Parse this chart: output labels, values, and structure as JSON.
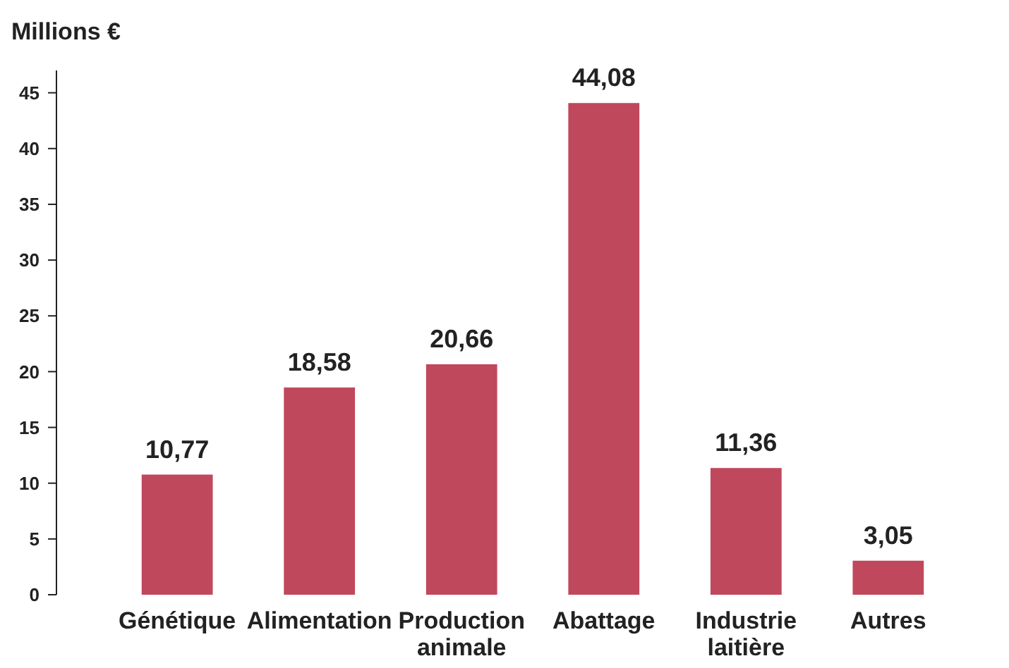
{
  "chart_data": {
    "type": "bar",
    "ylabel": "Millions €",
    "categories": [
      "Génétique",
      "Alimentation",
      "Production animale",
      "Abattage",
      "Industrie laitière",
      "Autres"
    ],
    "values": [
      10.77,
      18.58,
      20.66,
      44.08,
      11.36,
      3.05
    ],
    "value_labels": [
      "10,77",
      "18,58",
      "20,66",
      "44,08",
      "11,36",
      "3,05"
    ],
    "color": "#c0485c",
    "ylim": [
      0,
      47
    ],
    "yticks": [
      0,
      5,
      10,
      15,
      20,
      25,
      30,
      35,
      40,
      45
    ],
    "grid": false
  }
}
